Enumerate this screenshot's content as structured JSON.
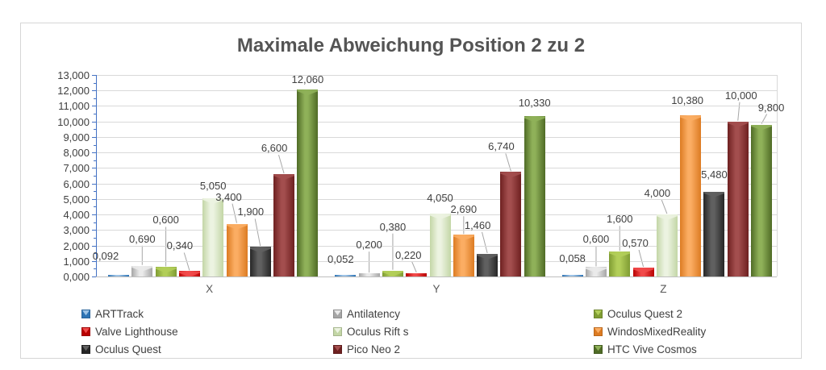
{
  "chart_data": {
    "type": "bar",
    "title": "Maximale Abweichung Position 2 zu 2",
    "categories": [
      "X",
      "Y",
      "Z"
    ],
    "series": [
      {
        "name": "ARTTrack",
        "color": "#2e74b5",
        "color_light": "#9dc3e6",
        "values": [
          0.092,
          0.052,
          0.058
        ],
        "labels": [
          "0,092",
          "0,052",
          "0,058"
        ]
      },
      {
        "name": "Antilatency",
        "color": "#a6a6a6",
        "color_light": "#eaeaea",
        "values": [
          0.69,
          0.2,
          0.6
        ],
        "labels": [
          "0,690",
          "0,200",
          "0,600"
        ]
      },
      {
        "name": "Oculus Quest 2",
        "color": "#7f9c33",
        "color_light": "#b2ce59",
        "values": [
          0.6,
          0.38,
          1.6
        ],
        "labels": [
          "0,600",
          "0,380",
          "1,600"
        ]
      },
      {
        "name": "Valve Lighthouse",
        "color": "#b80000",
        "color_light": "#f14a4a",
        "values": [
          0.34,
          0.22,
          0.57
        ],
        "labels": [
          "0,340",
          "0,220",
          "0,570"
        ]
      },
      {
        "name": "Oculus Rift s",
        "color": "#c3d6a6",
        "color_light": "#ecf3e1",
        "values": [
          5.05,
          4.05,
          4.0
        ],
        "labels": [
          "5,050",
          "4,050",
          "4,000"
        ]
      },
      {
        "name": "WindosMixedReality",
        "color": "#dc7b22",
        "color_light": "#fbad63",
        "values": [
          3.4,
          2.69,
          10.38
        ],
        "labels": [
          "3,400",
          "2,690",
          "10,380"
        ]
      },
      {
        "name": "Oculus Quest",
        "color": "#262626",
        "color_light": "#606060",
        "values": [
          1.9,
          1.46,
          5.48
        ],
        "labels": [
          "1,900",
          "1,460",
          "5,480"
        ]
      },
      {
        "name": "Pico Neo 2",
        "color": "#6e2020",
        "color_light": "#a34e4e",
        "values": [
          6.6,
          6.74,
          10.0
        ],
        "labels": [
          "6,600",
          "6,740",
          "10,000"
        ]
      },
      {
        "name": "HTC Vive Cosmos",
        "color": "#4f6b26",
        "color_light": "#8fb159",
        "values": [
          12.06,
          10.33,
          9.8
        ],
        "labels": [
          "12,060",
          "10,330",
          "9,800"
        ]
      }
    ],
    "y_axis": {
      "min": 0,
      "max": 13,
      "major_step": 1,
      "tick_labels": [
        "0,000",
        "1,000",
        "2,000",
        "3,000",
        "4,000",
        "5,000",
        "6,000",
        "7,000",
        "8,000",
        "9,000",
        "10,000",
        "11,000",
        "12,000",
        "13,000"
      ]
    },
    "grid": true,
    "legend_position": "bottom",
    "axis_color": "#4472c4",
    "gridline_color": "#d9d9d9",
    "label_color": "#404040"
  }
}
